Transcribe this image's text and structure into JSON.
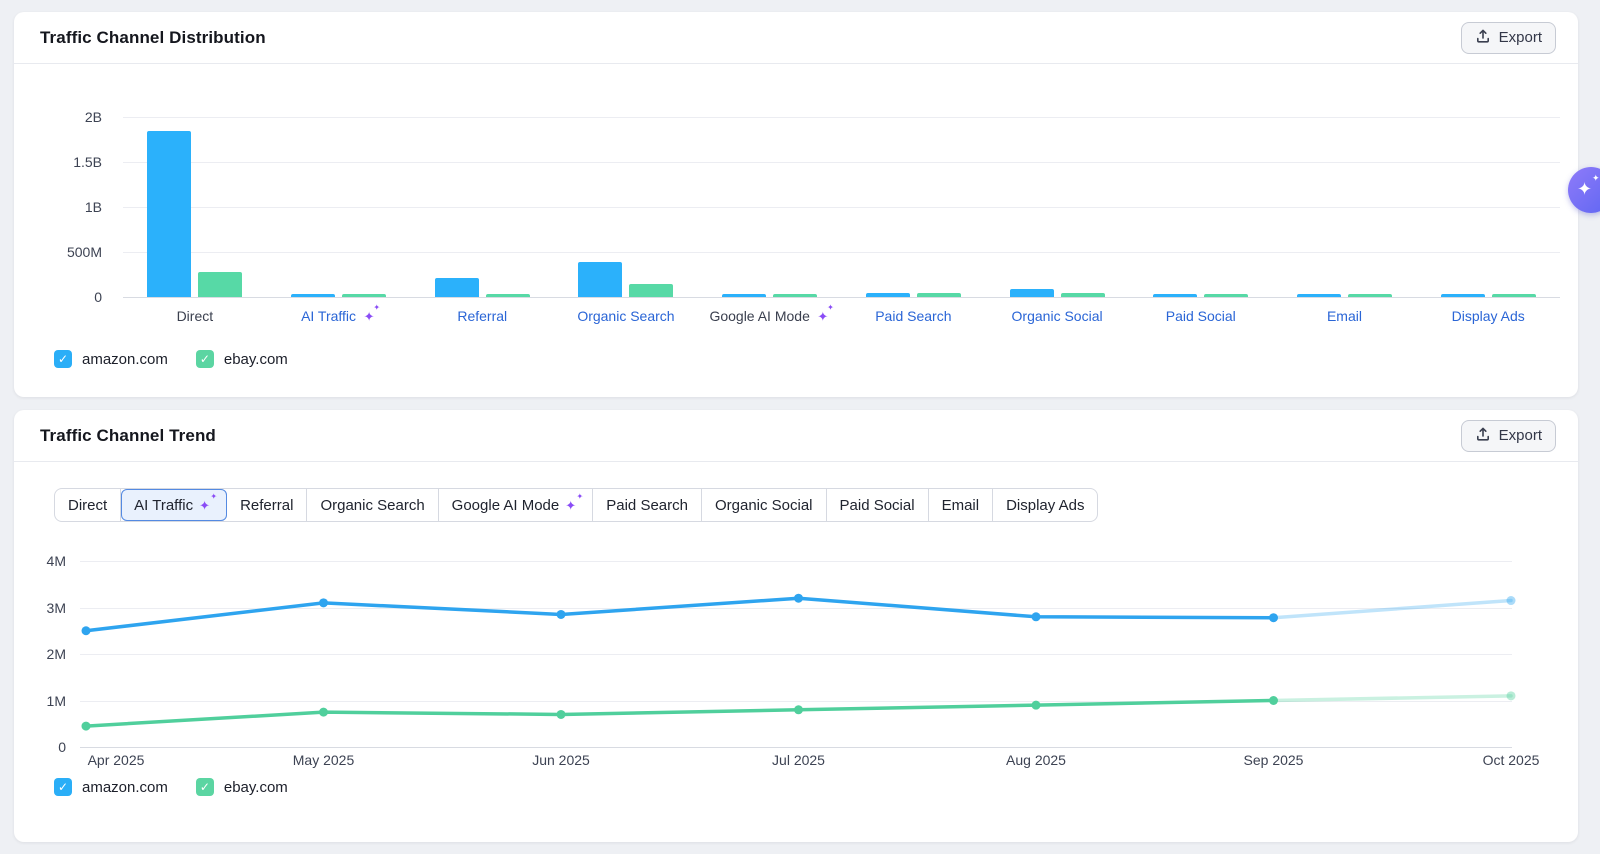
{
  "icons": {
    "check": "✓",
    "sparkle": "✦"
  },
  "distribution_panel": {
    "title": "Traffic Channel Distribution",
    "export_label": "Export",
    "legend": [
      {
        "label": "amazon.com",
        "color": "#2aaef7"
      },
      {
        "label": "ebay.com",
        "color": "#5bd5a2"
      }
    ],
    "chart_data": {
      "type": "bar",
      "title": "Traffic Channel Distribution",
      "categories": [
        "Direct",
        "AI Traffic",
        "Referral",
        "Organic Search",
        "Google AI Mode",
        "Paid Search",
        "Organic Social",
        "Paid Social",
        "Email",
        "Display Ads"
      ],
      "category_styles": [
        {
          "link": false,
          "sparkle": false
        },
        {
          "link": true,
          "sparkle": true
        },
        {
          "link": true,
          "sparkle": false
        },
        {
          "link": true,
          "sparkle": false
        },
        {
          "link": false,
          "sparkle": true
        },
        {
          "link": true,
          "sparkle": false
        },
        {
          "link": true,
          "sparkle": false
        },
        {
          "link": true,
          "sparkle": false
        },
        {
          "link": true,
          "sparkle": false
        },
        {
          "link": true,
          "sparkle": false
        }
      ],
      "series": [
        {
          "name": "amazon.com",
          "color": "#2bb1fb",
          "values_millions": [
            1850,
            3.2,
            210,
            390,
            2.5,
            40,
            90,
            35,
            14,
            12
          ]
        },
        {
          "name": "ebay.com",
          "color": "#57d9a6",
          "values_millions": [
            280,
            1.0,
            30,
            140,
            2.0,
            40,
            45,
            28,
            20,
            14
          ]
        }
      ],
      "ytick_labels": [
        "2B",
        "1.5B",
        "1B",
        "500M",
        "0"
      ],
      "ylim_millions": [
        0,
        2000
      ],
      "grid": true,
      "legend_position": "bottom-left"
    }
  },
  "trend_panel": {
    "title": "Traffic Channel Trend",
    "export_label": "Export",
    "tabs": [
      {
        "label": "Direct",
        "selected": false,
        "sparkle": false
      },
      {
        "label": "AI Traffic",
        "selected": true,
        "sparkle": true
      },
      {
        "label": "Referral",
        "selected": false,
        "sparkle": false
      },
      {
        "label": "Organic Search",
        "selected": false,
        "sparkle": false
      },
      {
        "label": "Google AI Mode",
        "selected": false,
        "sparkle": true
      },
      {
        "label": "Paid Search",
        "selected": false,
        "sparkle": false
      },
      {
        "label": "Organic Social",
        "selected": false,
        "sparkle": false
      },
      {
        "label": "Paid Social",
        "selected": false,
        "sparkle": false
      },
      {
        "label": "Email",
        "selected": false,
        "sparkle": false
      },
      {
        "label": "Display Ads",
        "selected": false,
        "sparkle": false
      }
    ],
    "legend": [
      {
        "label": "amazon.com",
        "color": "#2aaef7"
      },
      {
        "label": "ebay.com",
        "color": "#5bd5a2"
      }
    ],
    "chart_data": {
      "type": "line",
      "title": "Traffic Channel Trend — AI Traffic",
      "x": [
        "Apr 2025",
        "May 2025",
        "Jun 2025",
        "Jul 2025",
        "Aug 2025",
        "Sep 2025",
        "Oct 2025"
      ],
      "series": [
        {
          "name": "amazon.com",
          "color": "#2ea4ef",
          "values_millions": [
            2.5,
            3.1,
            2.85,
            3.2,
            2.8,
            2.78,
            3.15
          ]
        },
        {
          "name": "ebay.com",
          "color": "#50cf9c",
          "values_millions": [
            0.45,
            0.75,
            0.7,
            0.8,
            0.9,
            1.0,
            1.1
          ]
        }
      ],
      "ytick_labels": [
        "4M",
        "3M",
        "2M",
        "1M",
        "0"
      ],
      "ylim_millions": [
        0,
        4
      ],
      "grid": true,
      "projected_last_segment": true,
      "legend_position": "bottom-left"
    }
  }
}
